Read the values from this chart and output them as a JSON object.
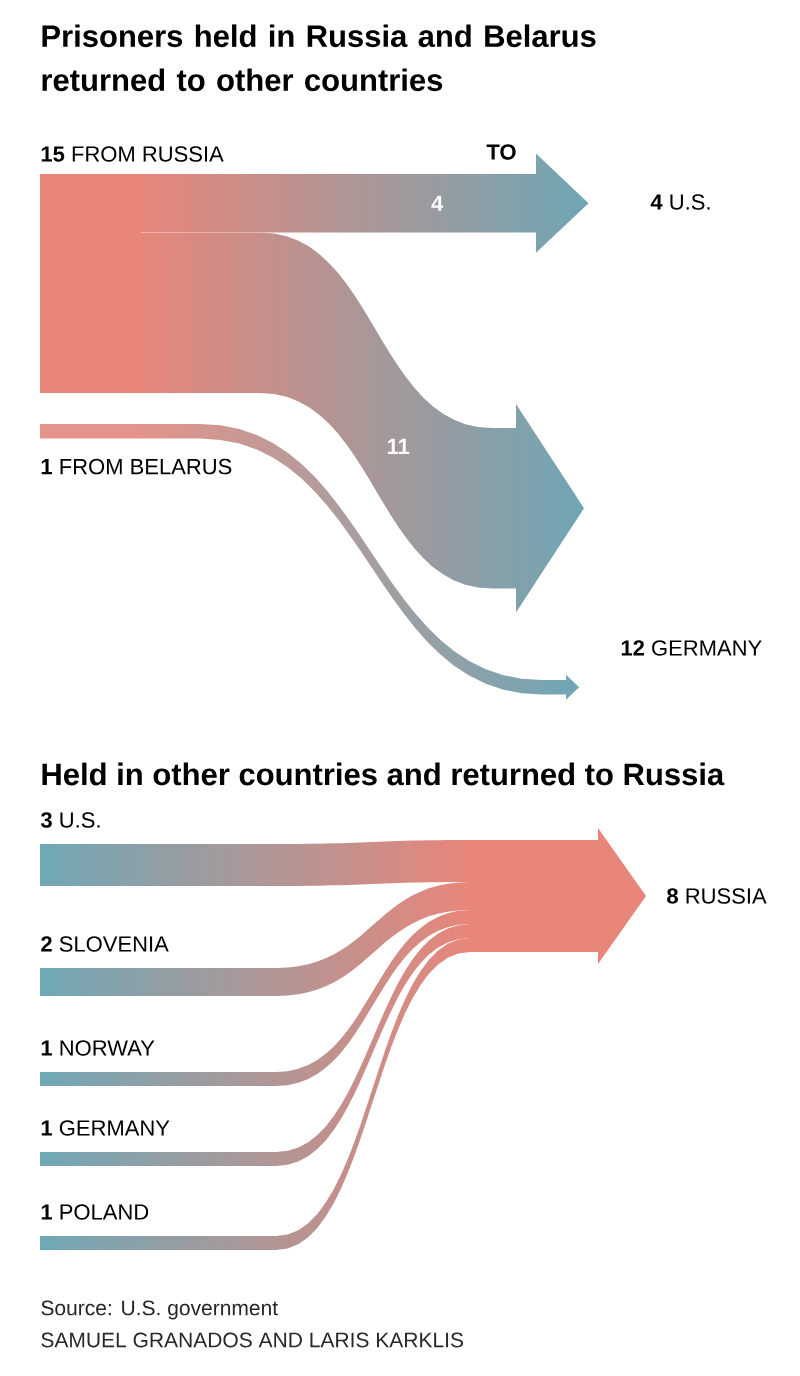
{
  "chart_data": [
    {
      "type": "other",
      "title": "Prisoners held in Russia and Belarus returned to other countries",
      "categories": [
        "U.S.",
        "GERMANY"
      ],
      "colors": [
        "#6fa6b4",
        "#6fa6b4"
      ],
      "totals": [
        "4",
        "12"
      ],
      "series": [
        {
          "name": "**15** FROM RUSSIA",
          "color": "#e8867a",
          "values": [
            4,
            11
          ],
          "value_labels": [
            "4",
            "11"
          ]
        },
        {
          "name": "FROM BELARUS",
          "color": "#e4948a",
          "values": [
            null,
            1
          ],
          "value_labels": [
            null,
            "1"
          ]
        }
      ],
      "annotations": [
        "TO"
      ]
    },
    {
      "type": "other",
      "title": "Held in other countries and returned to Russia",
      "categories": [
        "U.S.",
        "SLOVENIA",
        "NORWAY",
        "GERMANY",
        "POLAND"
      ],
      "colors": [
        "#6fa8b6",
        "#6fa8b6",
        "#6fa8b6",
        "#6fa8b6",
        "#6fa8b6"
      ],
      "data_labels": true,
      "totals": [
        "8"
      ],
      "series": [
        {
          "name": "RUSSIA",
          "color": "#e8867a",
          "values": [
            3,
            2,
            1,
            1,
            1
          ]
        }
      ],
      "annotations": [
        "Source: U.S. government",
        "SAMUEL GRANADOS AND LARIS KARKLIS"
      ]
    }
  ]
}
